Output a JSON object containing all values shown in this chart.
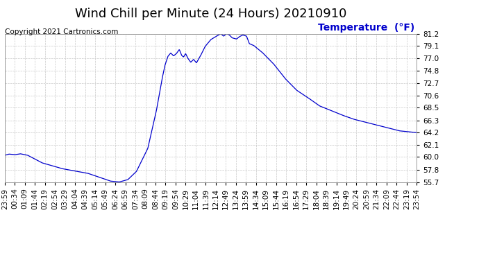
{
  "title": "Wind Chill per Minute (24 Hours) 20210910",
  "copyright_text": "Copyright 2021 Cartronics.com",
  "legend_label": "Temperature  (°F)",
  "background_color": "#ffffff",
  "plot_bg_color": "#ffffff",
  "line_color": "#0000cc",
  "grid_color": "#c8c8c8",
  "yticks": [
    55.7,
    57.8,
    60.0,
    62.1,
    64.2,
    66.3,
    68.5,
    70.6,
    72.7,
    74.8,
    77.0,
    79.1,
    81.2
  ],
  "ymin": 55.7,
  "ymax": 81.2,
  "xtick_labels": [
    "23:59",
    "00:34",
    "01:09",
    "01:44",
    "02:19",
    "02:54",
    "03:29",
    "04:04",
    "04:39",
    "05:14",
    "05:49",
    "06:24",
    "06:59",
    "07:34",
    "08:09",
    "08:44",
    "09:19",
    "09:54",
    "10:29",
    "11:04",
    "11:39",
    "12:14",
    "12:49",
    "13:24",
    "13:59",
    "14:34",
    "15:09",
    "15:44",
    "16:19",
    "16:54",
    "17:29",
    "18:04",
    "18:39",
    "19:14",
    "19:49",
    "20:24",
    "20:59",
    "21:34",
    "22:09",
    "22:44",
    "23:19",
    "23:54"
  ],
  "title_fontsize": 13,
  "tick_fontsize": 7.5,
  "legend_fontsize": 10,
  "copyright_fontsize": 7.5
}
